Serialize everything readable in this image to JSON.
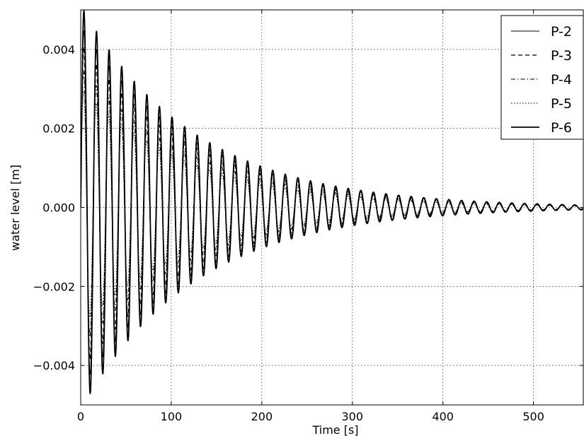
{
  "chart_data": {
    "type": "line",
    "xlabel": "Time [s]",
    "ylabel": "water level [m]",
    "xlim": [
      0,
      555
    ],
    "ylim": [
      -0.005,
      0.005
    ],
    "x_ticks": [
      0,
      100,
      200,
      300,
      400,
      500
    ],
    "y_ticks": [
      -0.004,
      -0.002,
      0.0,
      0.002,
      0.004
    ],
    "x_tick_labels": [
      "0",
      "100",
      "200",
      "300",
      "400",
      "500"
    ],
    "y_tick_labels": [
      "−0.004",
      "−0.002",
      "0.000",
      "0.002",
      "0.004"
    ],
    "grid": true,
    "legend_position": "top-right",
    "period_s": 13.9,
    "decay_time_constant_s": 125,
    "series": [
      {
        "name": "P-2",
        "style": "solid-thin",
        "peak_amplitude": 0.0044,
        "phase_s": 0.0
      },
      {
        "name": "P-3",
        "style": "dashed",
        "peak_amplitude": 0.004,
        "phase_s": 0.1
      },
      {
        "name": "P-4",
        "style": "dashdot",
        "peak_amplitude": 0.0034,
        "phase_s": 0.2
      },
      {
        "name": "P-5",
        "style": "dotted",
        "peak_amplitude": 0.0029,
        "phase_s": 0.3
      },
      {
        "name": "P-6",
        "style": "solid-thick",
        "peak_amplitude": 0.0049,
        "phase_s": -0.1
      }
    ]
  }
}
